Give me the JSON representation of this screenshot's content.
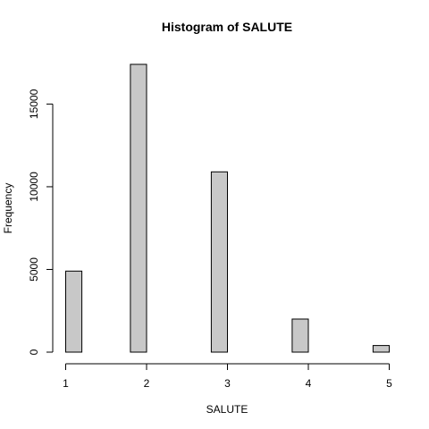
{
  "chart_data": {
    "type": "bar",
    "title": "Histogram of SALUTE",
    "xlabel": "SALUTE",
    "ylabel": "Frequency",
    "bins": [
      {
        "start": 1.0,
        "end": 1.2,
        "count": 4900
      },
      {
        "start": 1.2,
        "end": 1.4,
        "count": 0
      },
      {
        "start": 1.4,
        "end": 1.6,
        "count": 0
      },
      {
        "start": 1.6,
        "end": 1.8,
        "count": 0
      },
      {
        "start": 1.8,
        "end": 2.0,
        "count": 17400
      },
      {
        "start": 2.0,
        "end": 2.2,
        "count": 0
      },
      {
        "start": 2.2,
        "end": 2.4,
        "count": 0
      },
      {
        "start": 2.4,
        "end": 2.6,
        "count": 0
      },
      {
        "start": 2.6,
        "end": 2.8,
        "count": 0
      },
      {
        "start": 2.8,
        "end": 3.0,
        "count": 10900
      },
      {
        "start": 3.0,
        "end": 3.2,
        "count": 0
      },
      {
        "start": 3.2,
        "end": 3.4,
        "count": 0
      },
      {
        "start": 3.4,
        "end": 3.6,
        "count": 0
      },
      {
        "start": 3.6,
        "end": 3.8,
        "count": 0
      },
      {
        "start": 3.8,
        "end": 4.0,
        "count": 2000
      },
      {
        "start": 4.0,
        "end": 4.2,
        "count": 0
      },
      {
        "start": 4.2,
        "end": 4.4,
        "count": 0
      },
      {
        "start": 4.4,
        "end": 4.6,
        "count": 0
      },
      {
        "start": 4.6,
        "end": 4.8,
        "count": 0
      },
      {
        "start": 4.8,
        "end": 5.0,
        "count": 400
      }
    ],
    "xlim": [
      1,
      5
    ],
    "ylim": [
      0,
      17400
    ],
    "xticks": [
      1,
      2,
      3,
      4,
      5
    ],
    "yticks": [
      0,
      5000,
      10000,
      15000
    ],
    "grid": false,
    "bar_color": "#c8c8c8"
  }
}
